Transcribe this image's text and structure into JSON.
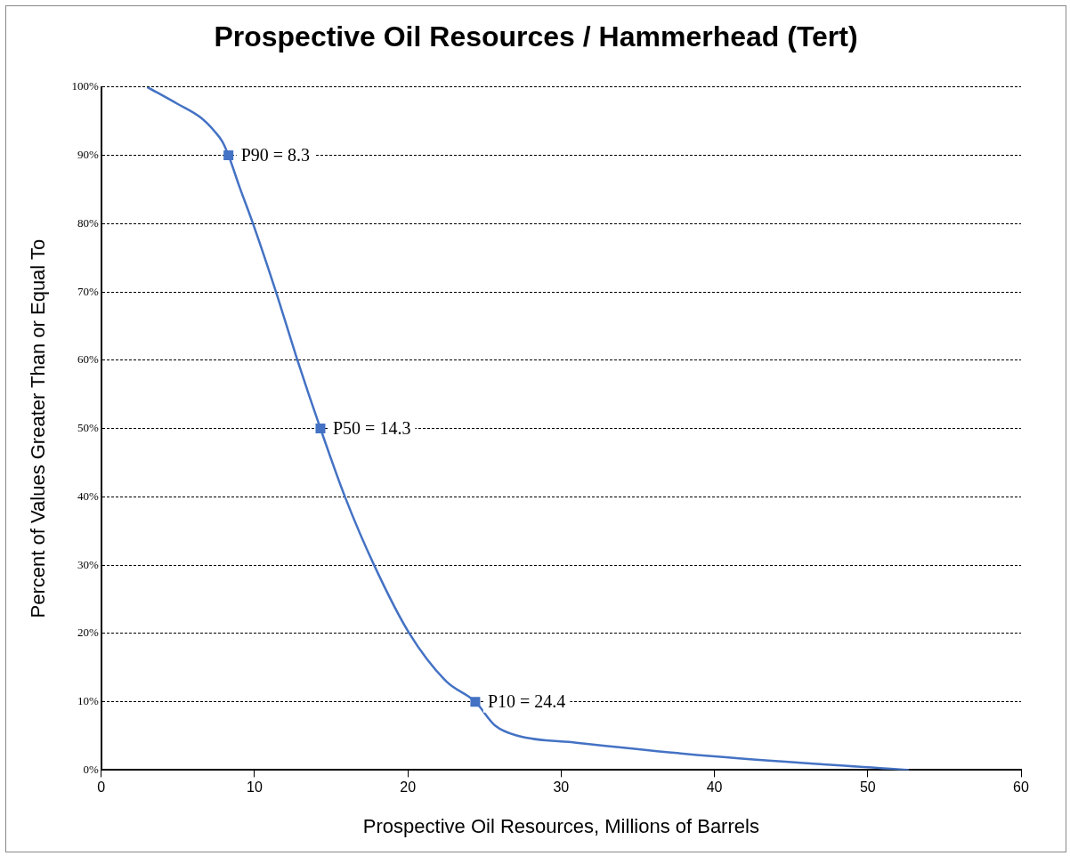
{
  "chart_data": {
    "type": "line",
    "title": "Prospective Oil Resources / Hammerhead (Tert)",
    "xlabel": "Prospective Oil Resources, Millions of Barrels",
    "ylabel": "Percent of Values Greater Than or Equal To",
    "xlim": [
      0,
      60
    ],
    "xticks": [
      0,
      10,
      20,
      30,
      40,
      50,
      60
    ],
    "ylim": [
      0,
      100
    ],
    "yticks": [
      {
        "value": 0,
        "label": "0%"
      },
      {
        "value": 10,
        "label": "10%"
      },
      {
        "value": 20,
        "label": "20%"
      },
      {
        "value": 30,
        "label": "30%"
      },
      {
        "value": 40,
        "label": "40%"
      },
      {
        "value": 50,
        "label": "50%"
      },
      {
        "value": 60,
        "label": "60%"
      },
      {
        "value": 70,
        "label": "70%"
      },
      {
        "value": 80,
        "label": "80%"
      },
      {
        "value": 90,
        "label": "90%"
      },
      {
        "value": 100,
        "label": "100%"
      }
    ],
    "grid": "y",
    "legend": false,
    "series": [
      {
        "type": "line",
        "color": "#4472c4",
        "marker": "none",
        "x": [
          3.0,
          5.0,
          6.5,
          7.4,
          7.9,
          8.3,
          9.0,
          9.9,
          11.4,
          12.8,
          14.3,
          15.9,
          17.8,
          20.1,
          22.5,
          24.4,
          25.7,
          27.2,
          31.0,
          40.0,
          52.7
        ],
        "values": [
          100,
          97.5,
          95.5,
          93.5,
          92,
          90,
          85.5,
          80,
          70,
          60,
          50,
          40,
          30,
          20,
          13,
          10,
          6.5,
          5,
          4,
          2,
          0
        ]
      },
      {
        "type": "scatter",
        "color": "#4472c4",
        "marker": "square",
        "x": [
          8.3,
          14.3,
          24.4
        ],
        "values": [
          90,
          50,
          10
        ]
      }
    ],
    "annotations": [
      {
        "text": "P90 = 8.3",
        "x": 8.3,
        "y": 90
      },
      {
        "text": "P50 = 14.3",
        "x": 14.3,
        "y": 50
      },
      {
        "text": "P10 = 24.4",
        "x": 24.4,
        "y": 10
      }
    ]
  }
}
